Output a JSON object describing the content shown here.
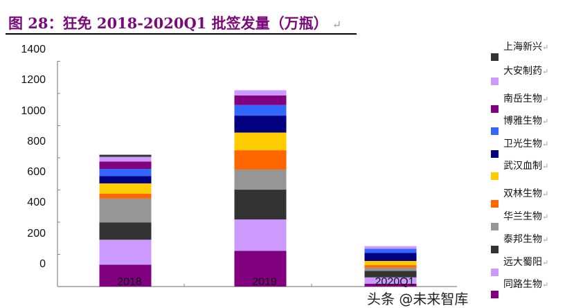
{
  "title": {
    "text": "图 28：狂免 2018-2020Q1 批签发量（万瓶）",
    "return_mark": "↵"
  },
  "watermark": "头条 @未来智库",
  "chart_data": {
    "type": "bar",
    "stacked": true,
    "title": "狂免 2018-2020Q1 批签发量（万瓶）",
    "categories": [
      "2018",
      "2019",
      "2020Q1"
    ],
    "ylim": [
      0,
      1400
    ],
    "yticks": [
      "0",
      "200",
      "400",
      "600",
      "800",
      "1000",
      "1200",
      "1400"
    ],
    "legend_position": "right",
    "series": [
      {
        "name": "同路生物",
        "color": "#800080",
        "values": [
          136,
          222,
          18
        ]
      },
      {
        "name": "远大蜀阳",
        "color": "#cc99ff",
        "values": [
          155,
          195,
          39
        ]
      },
      {
        "name": "泰邦生物",
        "color": "#333333",
        "values": [
          107,
          185,
          40
        ]
      },
      {
        "name": "华兰生物",
        "color": "#969696",
        "values": [
          149,
          125,
          20
        ]
      },
      {
        "name": "双林生物",
        "color": "#ff6600",
        "values": [
          30,
          120,
          16
        ]
      },
      {
        "name": "武汉血制",
        "color": "#ffcc00",
        "values": [
          64,
          110,
          26
        ]
      },
      {
        "name": "卫光生物",
        "color": "#000080",
        "values": [
          46,
          105,
          50
        ]
      },
      {
        "name": "博雅生物",
        "color": "#3366ff",
        "values": [
          44,
          66,
          26
        ]
      },
      {
        "name": "南岳生物",
        "color": "#800080",
        "values": [
          46,
          59,
          0
        ]
      },
      {
        "name": "大安制药",
        "color": "#cc99ff",
        "values": [
          29,
          33,
          16
        ]
      },
      {
        "name": "上海新兴",
        "color": "#333333",
        "values": [
          13,
          0,
          0
        ]
      }
    ]
  }
}
